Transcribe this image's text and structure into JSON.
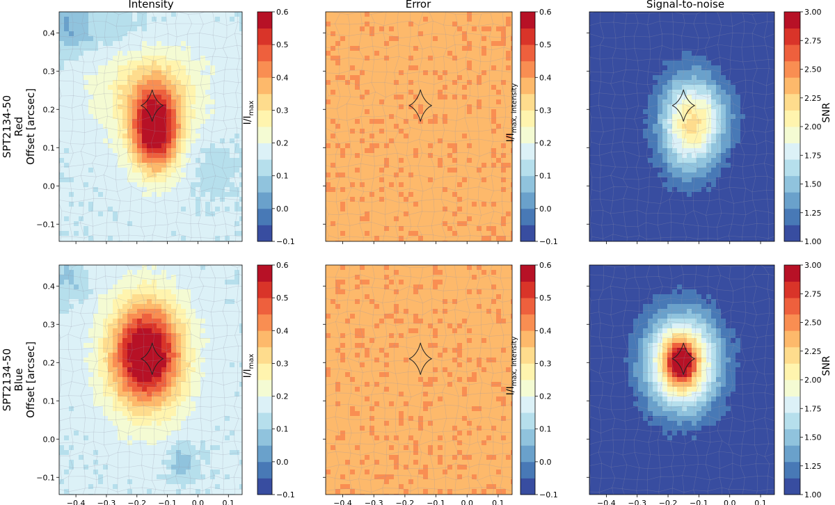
{
  "figure": {
    "column_titles": [
      "Intensity",
      "Error",
      "Signal-to-noise"
    ],
    "row_labels": [
      [
        "SPT2134-50",
        "Red",
        "Offset [arcsec]"
      ],
      [
        "SPT2134-50",
        "Blue",
        "Offset [arcsec]"
      ]
    ]
  },
  "chart_data": {
    "type": "heatmap",
    "x_axis": {
      "ticks": [
        -0.4,
        -0.3,
        -0.2,
        -0.1,
        0.0,
        0.1
      ],
      "tick_labels": [
        "−0.4",
        "−0.3",
        "−0.2",
        "−0.1",
        "0.0",
        "0.1"
      ],
      "range": [
        -0.455,
        0.145
      ]
    },
    "y_axis": {
      "ticks": [
        -0.1,
        0.0,
        0.1,
        0.2,
        0.3,
        0.4
      ],
      "tick_labels": [
        "−0.1",
        "0.0",
        "0.1",
        "0.2",
        "0.3",
        "0.4"
      ],
      "range": [
        -0.145,
        0.455
      ],
      "label": "Offset [arcsec]"
    },
    "colorbars": {
      "intensity": {
        "label": "I/I_max",
        "label_main": "I/I",
        "label_sub": "max",
        "range": [
          -0.1,
          0.6
        ],
        "ticks": [
          -0.1,
          0.0,
          0.1,
          0.2,
          0.3,
          0.4,
          0.5,
          0.6
        ],
        "tick_labels": [
          "−0.1",
          "0.0",
          "0.1",
          "0.2",
          "0.3",
          "0.4",
          "0.5",
          "0.6"
        ]
      },
      "error": {
        "label": "I/I_max, intensity",
        "label_main": "I/I",
        "label_sub": "max, intensity",
        "range": [
          -0.1,
          0.6
        ],
        "ticks": [
          -0.1,
          0.0,
          0.1,
          0.2,
          0.3,
          0.4,
          0.5,
          0.6
        ],
        "tick_labels": [
          "−0.1",
          "0.0",
          "0.1",
          "0.2",
          "0.3",
          "0.4",
          "0.5",
          "0.6"
        ]
      },
      "snr": {
        "label": "SNR",
        "label_main": "SNR",
        "label_sub": "",
        "range": [
          1.0,
          3.0
        ],
        "ticks": [
          1.0,
          1.25,
          1.5,
          1.75,
          2.0,
          2.25,
          2.5,
          2.75,
          3.0
        ],
        "tick_labels": [
          "1.00",
          "1.25",
          "1.50",
          "1.75",
          "2.00",
          "2.25",
          "2.50",
          "2.75",
          "3.00"
        ]
      }
    },
    "colormap": "RdYlBu_r",
    "colormap_levels": 14,
    "caustic_center": [
      -0.15,
      0.21
    ],
    "panels": [
      {
        "row": "Red",
        "column": "Intensity",
        "colorbar": "intensity",
        "background": 0.16,
        "blobs": [
          {
            "x": -0.14,
            "y": 0.14,
            "sx": 0.055,
            "sy": 0.075,
            "amp": 0.44
          },
          {
            "x": -0.16,
            "y": 0.25,
            "sx": 0.12,
            "sy": 0.09,
            "amp": 0.16
          },
          {
            "x": -0.42,
            "y": 0.42,
            "sx": 0.05,
            "sy": 0.05,
            "amp": -0.1
          },
          {
            "x": -0.25,
            "y": 0.4,
            "sx": 0.12,
            "sy": 0.05,
            "amp": -0.05
          },
          {
            "x": 0.05,
            "y": 0.05,
            "sx": 0.06,
            "sy": 0.05,
            "amp": -0.04
          }
        ]
      },
      {
        "row": "Red",
        "column": "Error",
        "colorbar": "error",
        "background": 0.38,
        "blobs": []
      },
      {
        "row": "Red",
        "column": "Signal-to-noise",
        "colorbar": "snr",
        "background": 1.0,
        "blobs": [
          {
            "x": -0.13,
            "y": 0.16,
            "sx": 0.07,
            "sy": 0.09,
            "amp": 1.05
          },
          {
            "x": -0.06,
            "y": 0.18,
            "sx": 0.07,
            "sy": 0.06,
            "amp": 0.25
          }
        ]
      },
      {
        "row": "Blue",
        "column": "Intensity",
        "colorbar": "intensity",
        "background": 0.16,
        "blobs": [
          {
            "x": -0.17,
            "y": 0.22,
            "sx": 0.085,
            "sy": 0.1,
            "amp": 0.5
          },
          {
            "x": -0.05,
            "y": -0.06,
            "sx": 0.03,
            "sy": 0.03,
            "amp": -0.1
          },
          {
            "x": -0.42,
            "y": 0.42,
            "sx": 0.04,
            "sy": 0.04,
            "amp": -0.07
          }
        ]
      },
      {
        "row": "Blue",
        "column": "Error",
        "colorbar": "error",
        "background": 0.38,
        "blobs": []
      },
      {
        "row": "Blue",
        "column": "Signal-to-noise",
        "colorbar": "snr",
        "background": 1.0,
        "blobs": [
          {
            "x": -0.155,
            "y": 0.2,
            "sx": 0.085,
            "sy": 0.09,
            "amp": 1.35
          },
          {
            "x": -0.16,
            "y": 0.2,
            "sx": 0.035,
            "sy": 0.04,
            "amp": 0.9
          }
        ]
      }
    ]
  }
}
